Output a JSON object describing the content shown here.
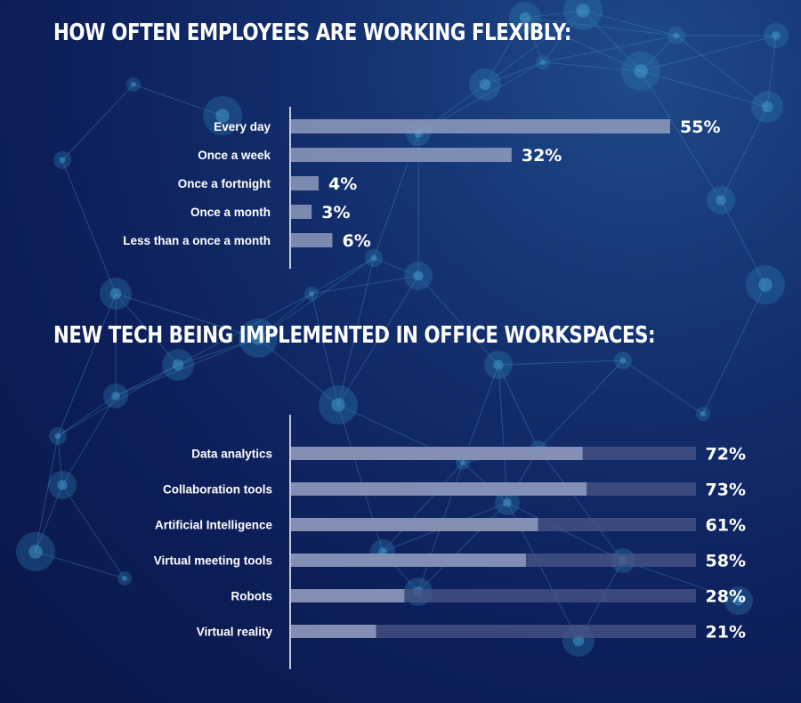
{
  "chart_data": [
    {
      "type": "bar",
      "orientation": "horizontal",
      "title": "HOW OFTEN EMPLOYEES ARE WORKING FLEXIBLY:",
      "categories": [
        "Every day",
        "Once a week",
        "Once a fortnight",
        "Once a month",
        "Less than a once a month"
      ],
      "values": [
        55,
        32,
        4,
        3,
        6
      ],
      "value_labels": [
        "55%",
        "32%",
        "4%",
        "3%",
        "6%"
      ],
      "xlim": [
        0,
        55
      ],
      "bar_color": "#8f9bbd"
    },
    {
      "type": "bar",
      "orientation": "horizontal",
      "title": "NEW TECH BEING IMPLEMENTED IN OFFICE WORKSPACES:",
      "categories": [
        "Data analytics",
        "Collaboration tools",
        "Artificial Intelligence",
        "Virtual meeting tools",
        "Robots",
        "Virtual reality"
      ],
      "values": [
        72,
        73,
        61,
        58,
        28,
        21
      ],
      "value_labels": [
        "72%",
        "73%",
        "61%",
        "58%",
        "28%",
        "21%"
      ],
      "xlim": [
        0,
        100
      ],
      "bar_color": "#8f9bbd",
      "track_color": "#4b5585"
    }
  ]
}
